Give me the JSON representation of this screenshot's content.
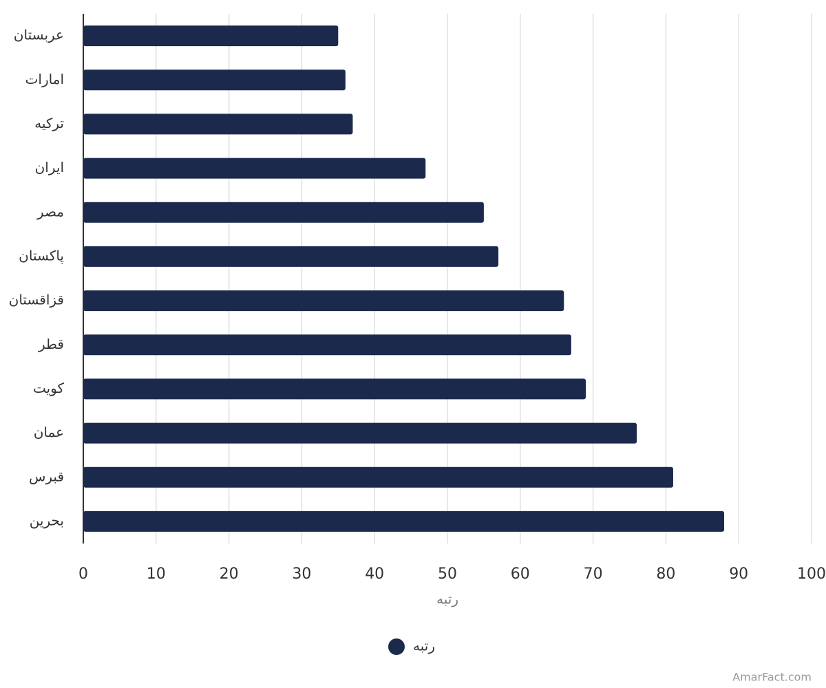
{
  "chart_data": {
    "type": "bar",
    "orientation": "horizontal",
    "categories": [
      "عربستان",
      "امارات",
      "ترکیه",
      "ایران",
      "مصر",
      "پاکستان",
      "قزاقستان",
      "قطر",
      "کویت",
      "عمان",
      "قبرس",
      "بحرین"
    ],
    "series": [
      {
        "name": "رتبه",
        "color": "#1b2a4c",
        "values": [
          35,
          36,
          37,
          47,
          55,
          57,
          66,
          67,
          69,
          76,
          81,
          88
        ]
      }
    ],
    "xlabel": "رتبه",
    "xlim": [
      0,
      100
    ],
    "xticks": [
      0,
      10,
      20,
      30,
      40,
      50,
      60,
      70,
      80,
      90,
      100
    ],
    "grid": true,
    "legend": "bottom",
    "credit": "AmarFact.com"
  }
}
